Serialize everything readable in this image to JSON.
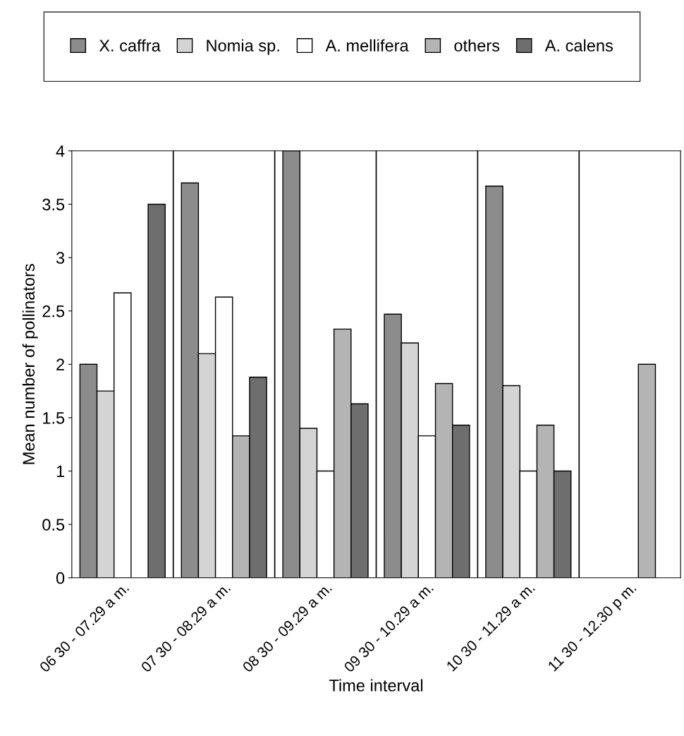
{
  "chart_data": {
    "type": "bar",
    "xlabel": "Time interval",
    "ylabel": "Mean number of pollinators",
    "categories": [
      "06 30 - 07.29 a m.",
      "07 30 - 08.29 a m.",
      "08 30 - 09.29 a m.",
      "09 30 - 10.29 a m.",
      "10 30 - 11.29 a m.",
      "11 30 - 12.30 p m."
    ],
    "series": [
      {
        "name": "X. caffra",
        "color": "#8c8c8c",
        "values": [
          2.0,
          3.7,
          4.0,
          2.47,
          3.67,
          null
        ]
      },
      {
        "name": "Nomia sp.",
        "color": "#d4d4d4",
        "values": [
          1.75,
          2.1,
          1.4,
          2.2,
          1.8,
          null
        ]
      },
      {
        "name": "A. mellifera",
        "color": "#ffffff",
        "values": [
          2.67,
          2.63,
          1.0,
          1.33,
          1.0,
          null
        ]
      },
      {
        "name": "others",
        "color": "#b4b4b4",
        "values": [
          null,
          1.33,
          2.33,
          1.82,
          1.43,
          2.0
        ]
      },
      {
        "name": "A. calens",
        "color": "#6e6e6e",
        "values": [
          3.5,
          1.88,
          1.63,
          1.43,
          1.0,
          null
        ]
      }
    ],
    "ylim": [
      0,
      4
    ],
    "yticks": [
      0,
      0.5,
      1,
      1.5,
      2,
      2.5,
      3,
      3.5,
      4
    ],
    "grid": "x",
    "legend": "top"
  }
}
